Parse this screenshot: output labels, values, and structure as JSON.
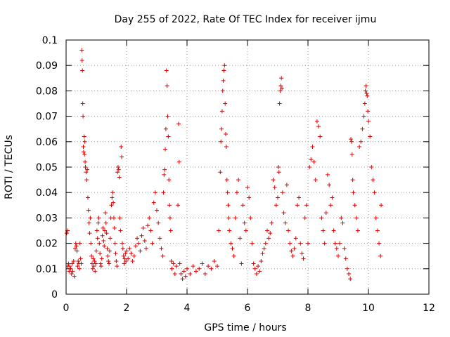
{
  "chart_data": {
    "type": "scatter",
    "title": "Day 255 of 2022, Rate Of TEC Index for receiver ijmu",
    "xlabel": "GPS time / hours",
    "ylabel": "ROTI / TECUs",
    "xlim": [
      0,
      12
    ],
    "ylim": [
      0,
      0.1
    ],
    "xticks": [
      0,
      2,
      4,
      6,
      8,
      10,
      12
    ],
    "xtick_labels": [
      "0",
      "2",
      "4",
      "6",
      "8",
      "10",
      "12"
    ],
    "yticks": [
      0,
      0.01,
      0.02,
      0.03,
      0.04,
      0.05,
      0.06,
      0.07,
      0.08,
      0.09,
      0.1
    ],
    "ytick_labels": [
      "0",
      "0.01",
      "0.02",
      "0.03",
      "0.04",
      "0.05",
      "0.06",
      "0.07",
      "0.08",
      "0.09",
      "0.1"
    ],
    "grid": true,
    "marker": "+",
    "marker_color": "#e00000",
    "series": [
      {
        "name": "ROTI",
        "points": [
          [
            0.02,
            0.024
          ],
          [
            0.05,
            0.025
          ],
          [
            0.06,
            0.011
          ],
          [
            0.08,
            0.012
          ],
          [
            0.1,
            0.009
          ],
          [
            0.12,
            0.011
          ],
          [
            0.15,
            0.01
          ],
          [
            0.18,
            0.008
          ],
          [
            0.2,
            0.012
          ],
          [
            0.22,
            0.009
          ],
          [
            0.25,
            0.013
          ],
          [
            0.27,
            0.007
          ],
          [
            0.3,
            0.018
          ],
          [
            0.32,
            0.02
          ],
          [
            0.34,
            0.019
          ],
          [
            0.36,
            0.017
          ],
          [
            0.38,
            0.011
          ],
          [
            0.4,
            0.013
          ],
          [
            0.42,
            0.012
          ],
          [
            0.44,
            0.01
          ],
          [
            0.46,
            0.02
          ],
          [
            0.48,
            0.014
          ],
          [
            0.5,
            0.012
          ],
          [
            0.52,
            0.096
          ],
          [
            0.53,
            0.092
          ],
          [
            0.54,
            0.088
          ],
          [
            0.55,
            0.075
          ],
          [
            0.56,
            0.07
          ],
          [
            0.57,
            0.058
          ],
          [
            0.58,
            0.056
          ],
          [
            0.6,
            0.062
          ],
          [
            0.61,
            0.055
          ],
          [
            0.62,
            0.06
          ],
          [
            0.63,
            0.052
          ],
          [
            0.64,
            0.05
          ],
          [
            0.66,
            0.048
          ],
          [
            0.68,
            0.045
          ],
          [
            0.7,
            0.049
          ],
          [
            0.72,
            0.038
          ],
          [
            0.74,
            0.033
          ],
          [
            0.76,
            0.028
          ],
          [
            0.78,
            0.024
          ],
          [
            0.8,
            0.03
          ],
          [
            0.82,
            0.02
          ],
          [
            0.84,
            0.015
          ],
          [
            0.86,
            0.012
          ],
          [
            0.88,
            0.01
          ],
          [
            0.9,
            0.014
          ],
          [
            0.92,
            0.011
          ],
          [
            0.94,
            0.013
          ],
          [
            0.96,
            0.009
          ],
          [
            0.98,
            0.012
          ],
          [
            1.0,
            0.017
          ],
          [
            1.02,
            0.025
          ],
          [
            1.04,
            0.022
          ],
          [
            1.06,
            0.028
          ],
          [
            1.08,
            0.03
          ],
          [
            1.1,
            0.02
          ],
          [
            1.12,
            0.016
          ],
          [
            1.14,
            0.012
          ],
          [
            1.16,
            0.011
          ],
          [
            1.18,
            0.014
          ],
          [
            1.2,
            0.023
          ],
          [
            1.22,
            0.026
          ],
          [
            1.24,
            0.021
          ],
          [
            1.26,
            0.019
          ],
          [
            1.28,
            0.025
          ],
          [
            1.3,
            0.032
          ],
          [
            1.32,
            0.028
          ],
          [
            1.34,
            0.024
          ],
          [
            1.36,
            0.018
          ],
          [
            1.38,
            0.015
          ],
          [
            1.4,
            0.013
          ],
          [
            1.42,
            0.012
          ],
          [
            1.44,
            0.017
          ],
          [
            1.46,
            0.022
          ],
          [
            1.48,
            0.03
          ],
          [
            1.5,
            0.035
          ],
          [
            1.52,
            0.038
          ],
          [
            1.54,
            0.04
          ],
          [
            1.56,
            0.036
          ],
          [
            1.58,
            0.03
          ],
          [
            1.6,
            0.026
          ],
          [
            1.62,
            0.02
          ],
          [
            1.64,
            0.016
          ],
          [
            1.66,
            0.013
          ],
          [
            1.68,
            0.011
          ],
          [
            1.7,
            0.048
          ],
          [
            1.72,
            0.05
          ],
          [
            1.74,
            0.049
          ],
          [
            1.76,
            0.046
          ],
          [
            1.78,
            0.03
          ],
          [
            1.8,
            0.025
          ],
          [
            1.82,
            0.058
          ],
          [
            1.84,
            0.054
          ],
          [
            1.86,
            0.02
          ],
          [
            1.88,
            0.018
          ],
          [
            1.9,
            0.015
          ],
          [
            1.92,
            0.012
          ],
          [
            1.94,
            0.014
          ],
          [
            1.96,
            0.016
          ],
          [
            1.98,
            0.013
          ],
          [
            2.0,
            0.017
          ],
          [
            2.05,
            0.014
          ],
          [
            2.1,
            0.018
          ],
          [
            2.15,
            0.016
          ],
          [
            2.2,
            0.013
          ],
          [
            2.25,
            0.015
          ],
          [
            2.3,
            0.019
          ],
          [
            2.35,
            0.022
          ],
          [
            2.4,
            0.02
          ],
          [
            2.45,
            0.017
          ],
          [
            2.5,
            0.023
          ],
          [
            2.55,
            0.026
          ],
          [
            2.6,
            0.021
          ],
          [
            2.65,
            0.018
          ],
          [
            2.7,
            0.027
          ],
          [
            2.75,
            0.03
          ],
          [
            2.8,
            0.025
          ],
          [
            2.85,
            0.02
          ],
          [
            2.9,
            0.036
          ],
          [
            2.95,
            0.04
          ],
          [
            3.0,
            0.033
          ],
          [
            3.05,
            0.028
          ],
          [
            3.1,
            0.022
          ],
          [
            3.15,
            0.018
          ],
          [
            3.2,
            0.015
          ],
          [
            3.22,
            0.04
          ],
          [
            3.24,
            0.047
          ],
          [
            3.26,
            0.049
          ],
          [
            3.28,
            0.057
          ],
          [
            3.3,
            0.065
          ],
          [
            3.32,
            0.088
          ],
          [
            3.34,
            0.082
          ],
          [
            3.36,
            0.07
          ],
          [
            3.38,
            0.062
          ],
          [
            3.4,
            0.045
          ],
          [
            3.42,
            0.035
          ],
          [
            3.44,
            0.03
          ],
          [
            3.46,
            0.025
          ],
          [
            3.48,
            0.013
          ],
          [
            3.5,
            0.01
          ],
          [
            3.55,
            0.012
          ],
          [
            3.6,
            0.008
          ],
          [
            3.65,
            0.011
          ],
          [
            3.7,
            0.035
          ],
          [
            3.72,
            0.067
          ],
          [
            3.74,
            0.052
          ],
          [
            3.76,
            0.012
          ],
          [
            3.8,
            0.008
          ],
          [
            3.85,
            0.006
          ],
          [
            3.9,
            0.009
          ],
          [
            3.95,
            0.007
          ],
          [
            4.0,
            0.01
          ],
          [
            4.1,
            0.008
          ],
          [
            4.2,
            0.011
          ],
          [
            4.3,
            0.009
          ],
          [
            4.4,
            0.01
          ],
          [
            4.5,
            0.012
          ],
          [
            4.6,
            0.008
          ],
          [
            4.7,
            0.011
          ],
          [
            4.8,
            0.01
          ],
          [
            4.9,
            0.013
          ],
          [
            5.0,
            0.011
          ],
          [
            5.05,
            0.025
          ],
          [
            5.1,
            0.048
          ],
          [
            5.12,
            0.06
          ],
          [
            5.14,
            0.065
          ],
          [
            5.16,
            0.072
          ],
          [
            5.18,
            0.08
          ],
          [
            5.2,
            0.084
          ],
          [
            5.22,
            0.088
          ],
          [
            5.24,
            0.09
          ],
          [
            5.26,
            0.075
          ],
          [
            5.28,
            0.063
          ],
          [
            5.3,
            0.058
          ],
          [
            5.32,
            0.045
          ],
          [
            5.34,
            0.04
          ],
          [
            5.36,
            0.035
          ],
          [
            5.38,
            0.03
          ],
          [
            5.4,
            0.025
          ],
          [
            5.45,
            0.02
          ],
          [
            5.5,
            0.018
          ],
          [
            5.55,
            0.015
          ],
          [
            5.6,
            0.03
          ],
          [
            5.65,
            0.04
          ],
          [
            5.7,
            0.045
          ],
          [
            5.75,
            0.022
          ],
          [
            5.8,
            0.012
          ],
          [
            5.85,
            0.035
          ],
          [
            5.9,
            0.028
          ],
          [
            5.95,
            0.025
          ],
          [
            6.0,
            0.042
          ],
          [
            6.05,
            0.038
          ],
          [
            6.1,
            0.03
          ],
          [
            6.15,
            0.02
          ],
          [
            6.2,
            0.012
          ],
          [
            6.25,
            0.01
          ],
          [
            6.3,
            0.008
          ],
          [
            6.35,
            0.011
          ],
          [
            6.4,
            0.009
          ],
          [
            6.45,
            0.013
          ],
          [
            6.5,
            0.016
          ],
          [
            6.55,
            0.018
          ],
          [
            6.6,
            0.02
          ],
          [
            6.65,
            0.025
          ],
          [
            6.7,
            0.022
          ],
          [
            6.75,
            0.024
          ],
          [
            6.8,
            0.028
          ],
          [
            6.85,
            0.045
          ],
          [
            6.9,
            0.042
          ],
          [
            6.95,
            0.035
          ],
          [
            7.0,
            0.038
          ],
          [
            7.02,
            0.05
          ],
          [
            7.04,
            0.048
          ],
          [
            7.06,
            0.075
          ],
          [
            7.08,
            0.08
          ],
          [
            7.1,
            0.082
          ],
          [
            7.12,
            0.085
          ],
          [
            7.14,
            0.081
          ],
          [
            7.16,
            0.04
          ],
          [
            7.2,
            0.032
          ],
          [
            7.25,
            0.028
          ],
          [
            7.3,
            0.043
          ],
          [
            7.35,
            0.025
          ],
          [
            7.4,
            0.02
          ],
          [
            7.45,
            0.017
          ],
          [
            7.5,
            0.015
          ],
          [
            7.55,
            0.018
          ],
          [
            7.6,
            0.022
          ],
          [
            7.65,
            0.035
          ],
          [
            7.7,
            0.038
          ],
          [
            7.75,
            0.02
          ],
          [
            7.8,
            0.016
          ],
          [
            7.85,
            0.014
          ],
          [
            7.9,
            0.03
          ],
          [
            7.95,
            0.035
          ],
          [
            8.0,
            0.02
          ],
          [
            8.05,
            0.05
          ],
          [
            8.1,
            0.053
          ],
          [
            8.15,
            0.058
          ],
          [
            8.2,
            0.052
          ],
          [
            8.25,
            0.045
          ],
          [
            8.3,
            0.068
          ],
          [
            8.35,
            0.066
          ],
          [
            8.4,
            0.062
          ],
          [
            8.45,
            0.03
          ],
          [
            8.5,
            0.025
          ],
          [
            8.55,
            0.02
          ],
          [
            8.6,
            0.032
          ],
          [
            8.65,
            0.047
          ],
          [
            8.7,
            0.043
          ],
          [
            8.75,
            0.035
          ],
          [
            8.8,
            0.038
          ],
          [
            8.85,
            0.025
          ],
          [
            8.9,
            0.02
          ],
          [
            8.95,
            0.018
          ],
          [
            9.0,
            0.015
          ],
          [
            9.05,
            0.02
          ],
          [
            9.1,
            0.03
          ],
          [
            9.15,
            0.028
          ],
          [
            9.2,
            0.018
          ],
          [
            9.25,
            0.014
          ],
          [
            9.3,
            0.01
          ],
          [
            9.35,
            0.008
          ],
          [
            9.4,
            0.006
          ],
          [
            9.42,
            0.061
          ],
          [
            9.44,
            0.06
          ],
          [
            9.46,
            0.055
          ],
          [
            9.48,
            0.045
          ],
          [
            9.5,
            0.04
          ],
          [
            9.55,
            0.035
          ],
          [
            9.6,
            0.03
          ],
          [
            9.65,
            0.025
          ],
          [
            9.7,
            0.058
          ],
          [
            9.75,
            0.06
          ],
          [
            9.8,
            0.065
          ],
          [
            9.85,
            0.07
          ],
          [
            9.88,
            0.075
          ],
          [
            9.9,
            0.08
          ],
          [
            9.92,
            0.082
          ],
          [
            9.94,
            0.079
          ],
          [
            9.96,
            0.078
          ],
          [
            9.98,
            0.072
          ],
          [
            10.0,
            0.068
          ],
          [
            10.05,
            0.062
          ],
          [
            10.1,
            0.05
          ],
          [
            10.15,
            0.045
          ],
          [
            10.2,
            0.04
          ],
          [
            10.25,
            0.03
          ],
          [
            10.3,
            0.025
          ],
          [
            10.35,
            0.02
          ],
          [
            10.4,
            0.015
          ],
          [
            10.42,
            0.035
          ]
        ]
      }
    ]
  }
}
